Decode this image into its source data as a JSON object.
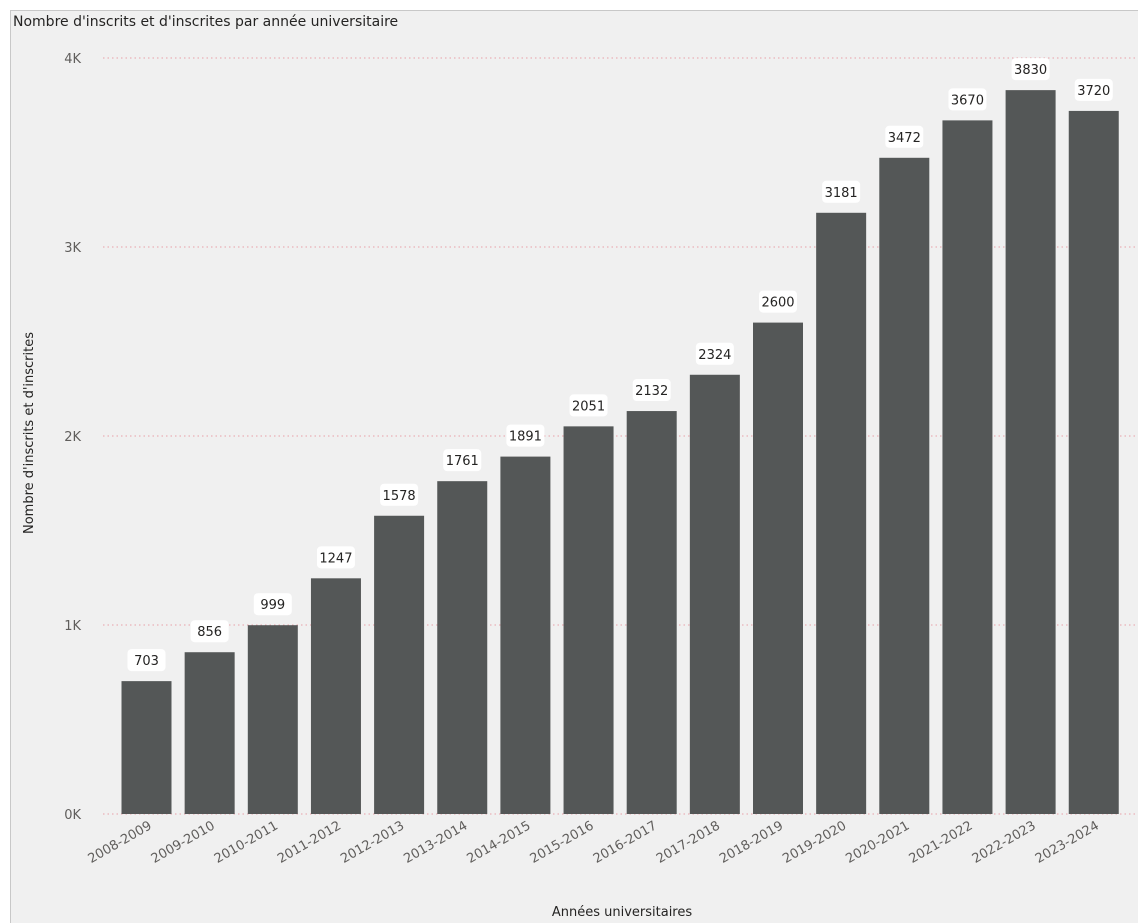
{
  "chart_data": {
    "type": "bar",
    "title": "Nombre d'inscrits et d'inscrites par année universitaire",
    "xlabel": "Années universitaires",
    "ylabel": "Nombre d'inscrits et d'inscrites",
    "ylim": [
      0,
      4000
    ],
    "yticks": [
      {
        "value": 0,
        "label": "0K"
      },
      {
        "value": 1000,
        "label": "1K"
      },
      {
        "value": 2000,
        "label": "2K"
      },
      {
        "value": 3000,
        "label": "3K"
      },
      {
        "value": 4000,
        "label": "4K"
      }
    ],
    "grid": true,
    "categories": [
      "2008-2009",
      "2009-2010",
      "2010-2011",
      "2011-2012",
      "2012-2013",
      "2013-2014",
      "2014-2015",
      "2015-2016",
      "2016-2017",
      "2017-2018",
      "2018-2019",
      "2019-2020",
      "2020-2021",
      "2021-2022",
      "2022-2023",
      "2023-2024"
    ],
    "values": [
      703,
      856,
      999,
      1247,
      1578,
      1761,
      1891,
      2051,
      2132,
      2324,
      2600,
      3181,
      3472,
      3670,
      3830,
      3720
    ],
    "colors": {
      "bar": "#545757",
      "grid": "#e8a0a8",
      "background": "#f0f0f0",
      "label_bg": "#ffffff"
    }
  }
}
